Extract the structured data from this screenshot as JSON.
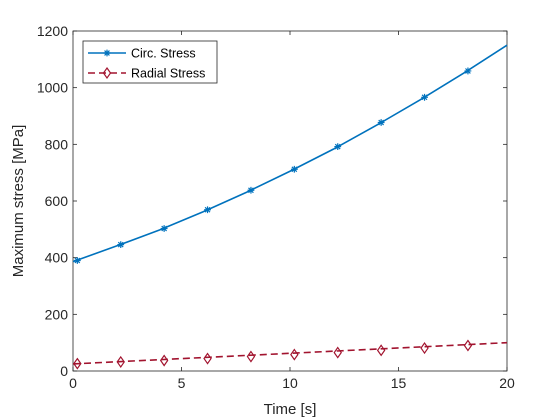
{
  "chart_data": {
    "type": "line",
    "xlabel": "Time [s]",
    "ylabel": "Maximum stress [MPa]",
    "xlim": [
      0,
      20
    ],
    "ylim": [
      0,
      1200
    ],
    "xticks": [
      0,
      5,
      10,
      15,
      20
    ],
    "yticks": [
      0,
      200,
      400,
      600,
      800,
      1000,
      1200
    ],
    "grid": false,
    "legend_position": "top-left",
    "series": [
      {
        "name": "Circ. Stress",
        "color": "#0072BD",
        "line_style": "solid",
        "marker": "asterisk",
        "x": [
          0.2,
          2.2,
          4.2,
          6.2,
          8.2,
          10.2,
          12.2,
          14.2,
          16.2,
          18.2
        ],
        "y": [
          390,
          446,
          503,
          569,
          638,
          712,
          792,
          877,
          966,
          1059
        ],
        "curve_x": [
          0,
          2,
          4,
          6,
          8,
          10,
          12,
          14,
          16,
          18,
          20
        ],
        "curve_y": [
          386,
          441,
          498,
          562,
          631,
          705,
          783,
          868,
          957,
          1051,
          1150
        ]
      },
      {
        "name": "Radial Stress",
        "color": "#A2142F",
        "line_style": "dashed",
        "marker": "diamond",
        "x": [
          0.2,
          2.2,
          4.2,
          6.2,
          8.2,
          10.2,
          12.2,
          14.2,
          16.2,
          18.2
        ],
        "y": [
          26,
          32,
          37,
          44,
          51,
          58,
          65,
          73,
          81,
          90
        ],
        "curve_x": [
          0,
          20
        ],
        "curve_y": [
          25,
          100
        ]
      }
    ]
  }
}
